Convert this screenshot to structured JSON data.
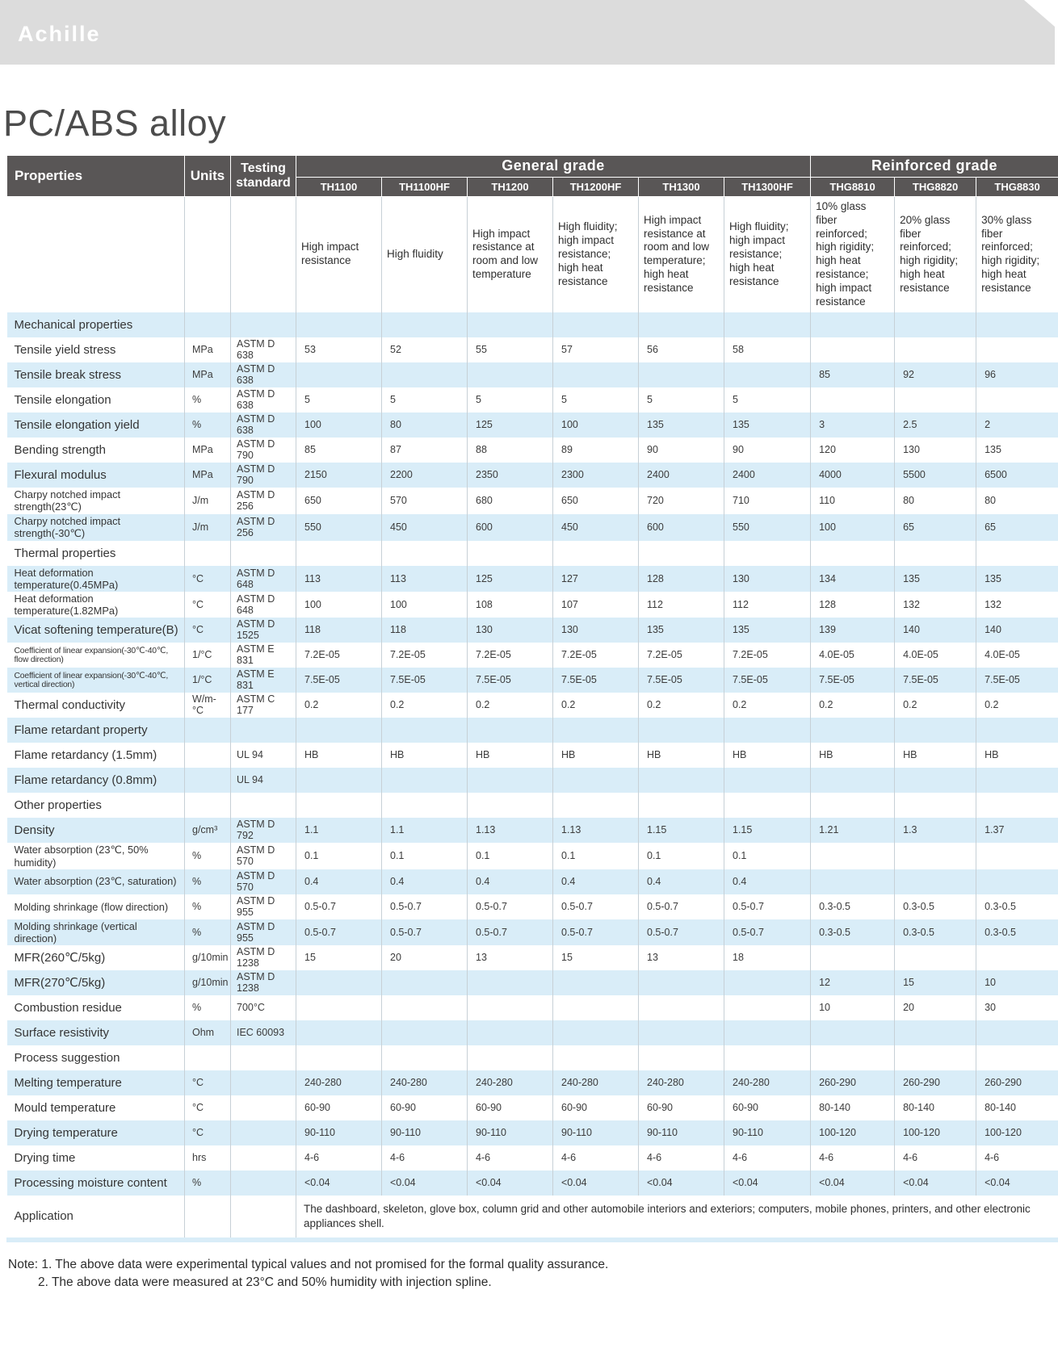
{
  "logo": "Achille",
  "page_title": "PC/ABS alloy",
  "colors": {
    "header_bg": "#595656",
    "stripe_blue": "#d9edf8",
    "banner_bg": "#dcdcdc",
    "text": "#3c3c3c"
  },
  "table": {
    "header": {
      "properties": "Properties",
      "units": "Units",
      "testing_standard": "Testing standard",
      "groups": [
        {
          "label": "General grade",
          "span": 6
        },
        {
          "label": "Reinforced grade",
          "span": 3
        }
      ],
      "grades": [
        "TH1100",
        "TH1100HF",
        "TH1200",
        "TH1200HF",
        "TH1300",
        "TH1300HF",
        "THG8810",
        "THG8820",
        "THG8830"
      ],
      "descriptions": [
        "High impact resistance",
        "High fluidity",
        "High impact resistance at room and low temperature",
        "High fluidity; high impact resistance; high heat resistance",
        "High impact resistance at room and low temperature; high heat resistance",
        "High fluidity; high impact resistance; high heat resistance",
        "10% glass fiber reinforced; high rigidity; high heat resistance; high impact resistance",
        "20% glass fiber reinforced; high rigidity; high heat resistance",
        "30% glass fiber reinforced; high rigidity; high heat resistance"
      ]
    },
    "rows": [
      {
        "type": "section",
        "label": "Mechanical properties"
      },
      {
        "type": "data",
        "label": "Tensile yield stress",
        "unit": "MPa",
        "standard": "ASTM D 638",
        "values": [
          "53",
          "52",
          "55",
          "57",
          "56",
          "58",
          "",
          "",
          ""
        ]
      },
      {
        "type": "data",
        "label": "Tensile break stress",
        "unit": "MPa",
        "standard": "ASTM D 638",
        "values": [
          "",
          "",
          "",
          "",
          "",
          "",
          "85",
          "92",
          "96"
        ]
      },
      {
        "type": "data",
        "label": "Tensile elongation",
        "unit": "%",
        "standard": "ASTM D 638",
        "values": [
          "5",
          "5",
          "5",
          "5",
          "5",
          "5",
          "",
          "",
          ""
        ]
      },
      {
        "type": "data",
        "label": "Tensile elongation yield",
        "unit": "%",
        "standard": "ASTM D 638",
        "values": [
          "100",
          "80",
          "125",
          "100",
          "135",
          "135",
          "3",
          "2.5",
          "2"
        ]
      },
      {
        "type": "data",
        "label": "Bending strength",
        "unit": "MPa",
        "standard": "ASTM D 790",
        "values": [
          "85",
          "87",
          "88",
          "89",
          "90",
          "90",
          "120",
          "130",
          "135"
        ]
      },
      {
        "type": "data",
        "label": "Flexural modulus",
        "unit": "MPa",
        "standard": "ASTM D 790",
        "values": [
          "2150",
          "2200",
          "2350",
          "2300",
          "2400",
          "2400",
          "4000",
          "5500",
          "6500"
        ]
      },
      {
        "type": "data",
        "label": "Charpy notched impact strength(23℃)",
        "unit": "J/m",
        "standard": "ASTM D 256",
        "values": [
          "650",
          "570",
          "680",
          "650",
          "720",
          "710",
          "110",
          "80",
          "80"
        ]
      },
      {
        "type": "data",
        "label": "Charpy notched impact strength(-30℃)",
        "unit": "J/m",
        "standard": "ASTM D 256",
        "values": [
          "550",
          "450",
          "600",
          "450",
          "600",
          "550",
          "100",
          "65",
          "65"
        ]
      },
      {
        "type": "section",
        "label": "Thermal properties"
      },
      {
        "type": "data",
        "label": "Heat deformation temperature(0.45MPa)",
        "unit": "°C",
        "standard": "ASTM D 648",
        "values": [
          "113",
          "113",
          "125",
          "127",
          "128",
          "130",
          "134",
          "135",
          "135"
        ]
      },
      {
        "type": "data",
        "label": "Heat deformation temperature(1.82MPa)",
        "unit": "°C",
        "standard": "ASTM D 648",
        "values": [
          "100",
          "100",
          "108",
          "107",
          "112",
          "112",
          "128",
          "132",
          "132"
        ]
      },
      {
        "type": "data",
        "label": "Vicat softening temperature(B)",
        "unit": "°C",
        "standard": "ASTM D 1525",
        "values": [
          "118",
          "118",
          "130",
          "130",
          "135",
          "135",
          "139",
          "140",
          "140"
        ]
      },
      {
        "type": "data",
        "label": "Coefficient of linear expansion(-30℃-40℃, flow direction)",
        "unit": "1/°C",
        "standard": "ASTM E 831",
        "values": [
          "7.2E-05",
          "7.2E-05",
          "7.2E-05",
          "7.2E-05",
          "7.2E-05",
          "7.2E-05",
          "4.0E-05",
          "4.0E-05",
          "4.0E-05"
        ]
      },
      {
        "type": "data",
        "label": "Coefficient of linear expansion(-30℃-40℃, vertical direction)",
        "unit": "1/°C",
        "standard": "ASTM E 831",
        "values": [
          "7.5E-05",
          "7.5E-05",
          "7.5E-05",
          "7.5E-05",
          "7.5E-05",
          "7.5E-05",
          "7.5E-05",
          "7.5E-05",
          "7.5E-05"
        ]
      },
      {
        "type": "data",
        "label": "Thermal conductivity",
        "unit": "W/m-°C",
        "standard": "ASTM C 177",
        "values": [
          "0.2",
          "0.2",
          "0.2",
          "0.2",
          "0.2",
          "0.2",
          "0.2",
          "0.2",
          "0.2"
        ]
      },
      {
        "type": "section",
        "label": "Flame retardant property"
      },
      {
        "type": "data",
        "label": "Flame retardancy (1.5mm)",
        "unit": "",
        "standard": "UL 94",
        "values": [
          "HB",
          "HB",
          "HB",
          "HB",
          "HB",
          "HB",
          "HB",
          "HB",
          "HB"
        ]
      },
      {
        "type": "data",
        "label": "Flame retardancy (0.8mm)",
        "unit": "",
        "standard": "UL 94",
        "values": [
          "",
          "",
          "",
          "",
          "",
          "",
          "",
          "",
          ""
        ]
      },
      {
        "type": "section",
        "label": "Other properties"
      },
      {
        "type": "data",
        "label": "Density",
        "unit": "g/cm³",
        "standard": "ASTM D 792",
        "values": [
          "1.1",
          "1.1",
          "1.13",
          "1.13",
          "1.15",
          "1.15",
          "1.21",
          "1.3",
          "1.37"
        ]
      },
      {
        "type": "data",
        "label": "Water absorption (23℃, 50% humidity)",
        "unit": "%",
        "standard": "ASTM D 570",
        "values": [
          "0.1",
          "0.1",
          "0.1",
          "0.1",
          "0.1",
          "0.1",
          "",
          "",
          ""
        ]
      },
      {
        "type": "data",
        "label": "Water absorption (23℃, saturation)",
        "unit": "%",
        "standard": "ASTM D 570",
        "values": [
          "0.4",
          "0.4",
          "0.4",
          "0.4",
          "0.4",
          "0.4",
          "",
          "",
          ""
        ]
      },
      {
        "type": "data",
        "label": "Molding shrinkage (flow direction)",
        "unit": "%",
        "standard": "ASTM D 955",
        "values": [
          "0.5-0.7",
          "0.5-0.7",
          "0.5-0.7",
          "0.5-0.7",
          "0.5-0.7",
          "0.5-0.7",
          "0.3-0.5",
          "0.3-0.5",
          "0.3-0.5"
        ]
      },
      {
        "type": "data",
        "label": "Molding shrinkage (vertical direction)",
        "unit": "%",
        "standard": "ASTM D 955",
        "values": [
          "0.5-0.7",
          "0.5-0.7",
          "0.5-0.7",
          "0.5-0.7",
          "0.5-0.7",
          "0.5-0.7",
          "0.3-0.5",
          "0.3-0.5",
          "0.3-0.5"
        ]
      },
      {
        "type": "data",
        "label": "MFR(260℃/5kg)",
        "unit": "g/10min",
        "standard": "ASTM D 1238",
        "values": [
          "15",
          "20",
          "13",
          "15",
          "13",
          "18",
          "",
          "",
          ""
        ]
      },
      {
        "type": "data",
        "label": "MFR(270℃/5kg)",
        "unit": "g/10min",
        "standard": "ASTM D 1238",
        "values": [
          "",
          "",
          "",
          "",
          "",
          "",
          "12",
          "15",
          "10"
        ]
      },
      {
        "type": "data",
        "label": "Combustion residue",
        "unit": "%",
        "standard": "700°C",
        "values": [
          "",
          "",
          "",
          "",
          "",
          "",
          "10",
          "20",
          "30"
        ]
      },
      {
        "type": "data",
        "label": "Surface resistivity",
        "unit": "Ohm",
        "standard": "IEC 60093",
        "values": [
          "",
          "",
          "",
          "",
          "",
          "",
          "",
          "",
          ""
        ]
      },
      {
        "type": "section",
        "label": "Process suggestion"
      },
      {
        "type": "data",
        "label": "Melting temperature",
        "unit": "°C",
        "standard": "",
        "values": [
          "240-280",
          "240-280",
          "240-280",
          "240-280",
          "240-280",
          "240-280",
          "260-290",
          "260-290",
          "260-290"
        ]
      },
      {
        "type": "data",
        "label": "Mould temperature",
        "unit": "°C",
        "standard": "",
        "values": [
          "60-90",
          "60-90",
          "60-90",
          "60-90",
          "60-90",
          "60-90",
          "80-140",
          "80-140",
          "80-140"
        ]
      },
      {
        "type": "data",
        "label": "Drying temperature",
        "unit": "°C",
        "standard": "",
        "values": [
          "90-110",
          "90-110",
          "90-110",
          "90-110",
          "90-110",
          "90-110",
          "100-120",
          "100-120",
          "100-120"
        ]
      },
      {
        "type": "data",
        "label": "Drying time",
        "unit": "hrs",
        "standard": "",
        "values": [
          "4-6",
          "4-6",
          "4-6",
          "4-6",
          "4-6",
          "4-6",
          "4-6",
          "4-6",
          "4-6"
        ]
      },
      {
        "type": "data",
        "label": "Processing moisture content",
        "unit": "%",
        "standard": "",
        "values": [
          "<0.04",
          "<0.04",
          "<0.04",
          "<0.04",
          "<0.04",
          "<0.04",
          "<0.04",
          "<0.04",
          "<0.04"
        ]
      },
      {
        "type": "application",
        "label": "Application",
        "text": "The dashboard, skeleton, glove box, column grid and other automobile interiors and exteriors; computers, mobile phones, printers, and other electronic appliances shell."
      }
    ]
  },
  "notes": {
    "line1": "Note: 1. The above data were experimental typical values and not promised for the formal quality assurance.",
    "line2": "2. The above data were measured at 23°C and 50% humidity with injection spline."
  }
}
